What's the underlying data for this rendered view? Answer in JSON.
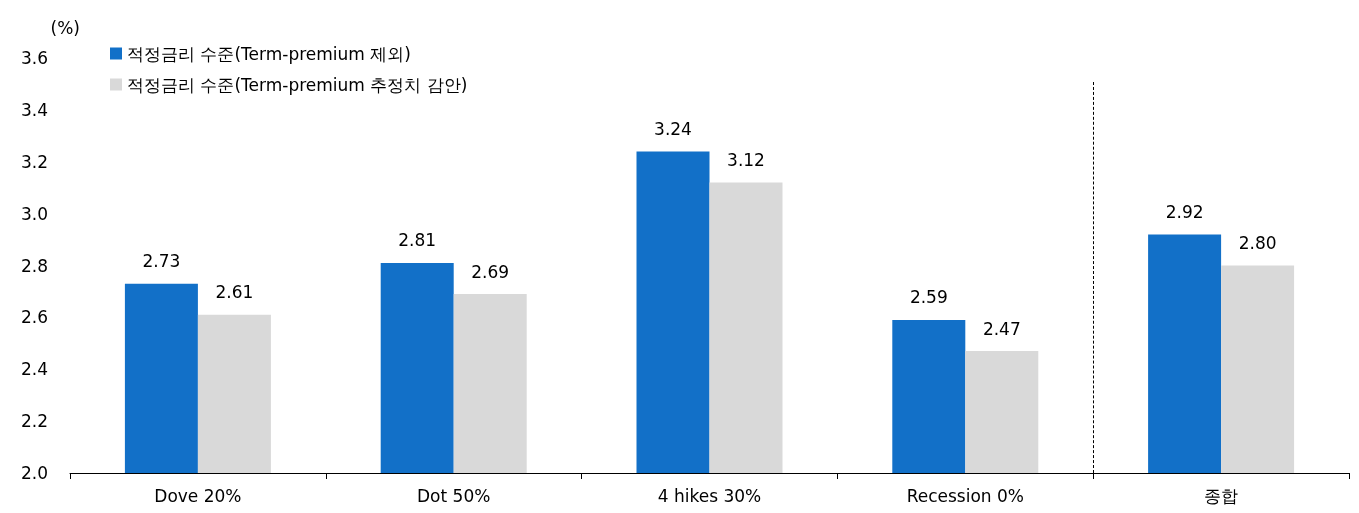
{
  "chart_data": {
    "type": "bar",
    "ylabel": "(%)",
    "categories": [
      "Dove 20%",
      "Dot 50%",
      "4 hikes 30%",
      "Recession 0%",
      "종합"
    ],
    "series": [
      {
        "name": "적정금리 수준(Term-premium 제외)",
        "color": "#1270c8",
        "values": [
          2.73,
          2.81,
          3.24,
          2.59,
          2.92
        ],
        "value_labels": [
          "2.73",
          "2.81",
          "3.24",
          "2.59",
          "2.92"
        ]
      },
      {
        "name": "적정금리 수준(Term-premium 추정치 감안)",
        "color": "#d9d9d9",
        "values": [
          2.61,
          2.69,
          3.12,
          2.47,
          2.8
        ],
        "value_labels": [
          "2.61",
          "2.69",
          "3.12",
          "2.47",
          "2.80"
        ]
      }
    ],
    "ylim": [
      2.0,
      3.6
    ],
    "yticks": [
      {
        "value": 2,
        "label": "2.0"
      },
      {
        "value": 2.2,
        "label": "2.2"
      },
      {
        "value": 2.4,
        "label": "2.4"
      },
      {
        "value": 2.6,
        "label": "2.6"
      },
      {
        "value": 2.8,
        "label": "2.8"
      },
      {
        "value": 3,
        "label": "3.0"
      },
      {
        "value": 3.2,
        "label": "3.2"
      },
      {
        "value": 3.4,
        "label": "3.4"
      },
      {
        "value": 3.6,
        "label": "3.6"
      }
    ],
    "grid": false,
    "legend": "top left"
  }
}
